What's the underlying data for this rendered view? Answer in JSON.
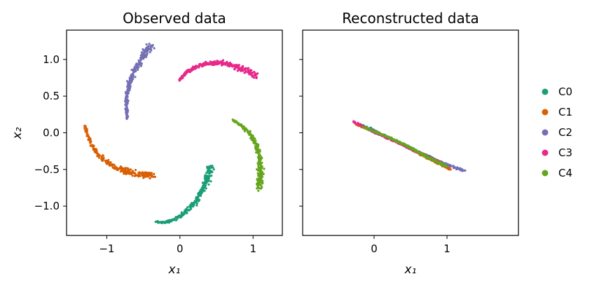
{
  "chart_data": [
    {
      "type": "scatter",
      "title": "Observed data",
      "xlabel": "x₁",
      "ylabel": "x₂",
      "xlim": [
        -1.55,
        1.4
      ],
      "ylim": [
        -1.4,
        1.4
      ],
      "xticks": [
        -1,
        0,
        1
      ],
      "yticks": [
        -1.0,
        -0.5,
        0.0,
        0.5,
        1.0
      ],
      "xtick_labels": [
        "−1",
        "0",
        "1"
      ],
      "ytick_labels": [
        "−1.0",
        "−0.5",
        "0.0",
        "0.5",
        "1.0"
      ],
      "series": [
        {
          "name": "C0",
          "color": "#1b9e77",
          "points": [
            [
              -0.32,
              -1.22
            ],
            [
              -0.2,
              -1.22
            ],
            [
              -0.05,
              -1.17
            ],
            [
              0.08,
              -1.08
            ],
            [
              0.2,
              -0.96
            ],
            [
              0.3,
              -0.8
            ],
            [
              0.38,
              -0.62
            ],
            [
              0.42,
              -0.48
            ]
          ]
        },
        {
          "name": "C1",
          "color": "#d95f02",
          "points": [
            [
              -1.3,
              0.1
            ],
            [
              -1.26,
              -0.05
            ],
            [
              -1.18,
              -0.22
            ],
            [
              -1.06,
              -0.36
            ],
            [
              -0.9,
              -0.46
            ],
            [
              -0.72,
              -0.53
            ],
            [
              -0.55,
              -0.57
            ],
            [
              -0.36,
              -0.57
            ]
          ]
        },
        {
          "name": "C2",
          "color": "#7570b3",
          "points": [
            [
              -0.72,
              0.18
            ],
            [
              -0.73,
              0.35
            ],
            [
              -0.72,
              0.52
            ],
            [
              -0.68,
              0.7
            ],
            [
              -0.6,
              0.88
            ],
            [
              -0.5,
              1.05
            ],
            [
              -0.4,
              1.2
            ]
          ]
        },
        {
          "name": "C3",
          "color": "#e7298a",
          "points": [
            [
              -0.02,
              0.7
            ],
            [
              0.08,
              0.82
            ],
            [
              0.22,
              0.9
            ],
            [
              0.38,
              0.95
            ],
            [
              0.55,
              0.95
            ],
            [
              0.72,
              0.92
            ],
            [
              0.9,
              0.85
            ],
            [
              1.05,
              0.78
            ]
          ]
        },
        {
          "name": "C4",
          "color": "#66a61e",
          "points": [
            [
              0.72,
              0.18
            ],
            [
              0.84,
              0.1
            ],
            [
              0.95,
              0.0
            ],
            [
              1.03,
              -0.13
            ],
            [
              1.08,
              -0.28
            ],
            [
              1.1,
              -0.45
            ],
            [
              1.1,
              -0.6
            ],
            [
              1.08,
              -0.76
            ]
          ]
        }
      ]
    },
    {
      "type": "scatter",
      "title": "Reconstructed data",
      "xlabel": "x₁",
      "ylabel": "",
      "xlim": [
        -0.98,
        1.98
      ],
      "ylim": [
        -1.4,
        1.4
      ],
      "xticks": [
        0,
        1
      ],
      "xtick_labels": [
        "0",
        "1"
      ],
      "series": [
        {
          "name": "C0",
          "color": "#1b9e77",
          "points": [
            [
              -0.2,
              0.12
            ],
            [
              0.1,
              -0.02
            ],
            [
              0.4,
              -0.16
            ],
            [
              0.7,
              -0.3
            ],
            [
              0.95,
              -0.42
            ]
          ]
        },
        {
          "name": "C1",
          "color": "#d95f02",
          "points": [
            [
              -0.25,
              0.12
            ],
            [
              0.05,
              0.0
            ],
            [
              0.35,
              -0.14
            ],
            [
              0.65,
              -0.3
            ],
            [
              1.05,
              -0.5
            ]
          ]
        },
        {
          "name": "C2",
          "color": "#7570b3",
          "points": [
            [
              -0.1,
              0.06
            ],
            [
              0.2,
              -0.06
            ],
            [
              0.55,
              -0.24
            ],
            [
              0.9,
              -0.4
            ],
            [
              1.25,
              -0.52
            ]
          ]
        },
        {
          "name": "C3",
          "color": "#e7298a",
          "points": [
            [
              -0.28,
              0.15
            ],
            [
              0.0,
              0.01
            ],
            [
              0.3,
              -0.12
            ],
            [
              0.6,
              -0.26
            ],
            [
              0.9,
              -0.4
            ]
          ]
        },
        {
          "name": "C4",
          "color": "#66a61e",
          "points": [
            [
              -0.15,
              0.08
            ],
            [
              0.15,
              -0.04
            ],
            [
              0.45,
              -0.18
            ],
            [
              0.75,
              -0.34
            ],
            [
              1.0,
              -0.46
            ]
          ]
        }
      ]
    }
  ],
  "legend": {
    "placement": "right",
    "items": [
      {
        "label": "C0",
        "color": "#1b9e77"
      },
      {
        "label": "C1",
        "color": "#d95f02"
      },
      {
        "label": "C2",
        "color": "#7570b3"
      },
      {
        "label": "C3",
        "color": "#e7298a"
      },
      {
        "label": "C4",
        "color": "#66a61e"
      }
    ]
  }
}
